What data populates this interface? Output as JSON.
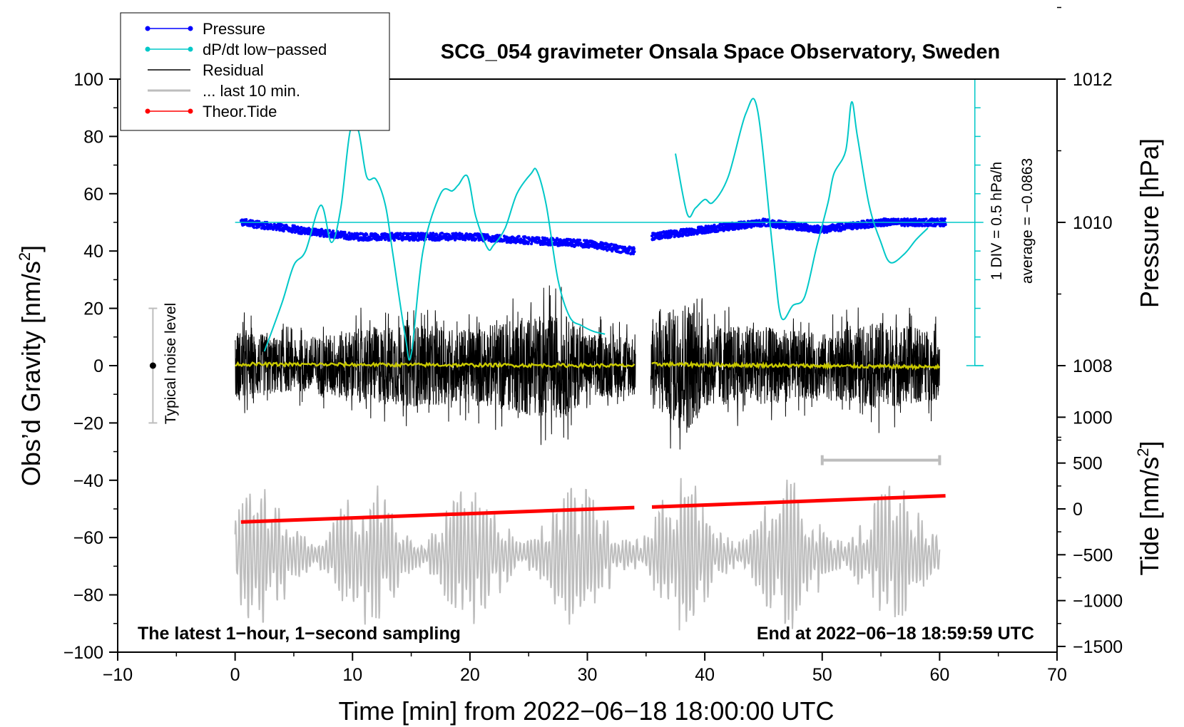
{
  "chart_data": {
    "type": "line",
    "title": "SCG_054 gravimeter Onsala Space Observatory, Sweden",
    "xlabel": "Time [min] from 2022−06−18 18:00:00 UTC",
    "ylabel_main": "Obs’d Gravity [nm/s",
    "ylabel_main_sup": "2",
    "ylabel_main_end": "]",
    "ylabel_pressure": "Pressure [hPa]",
    "ylabel_tide": "Tide [nm/s",
    "ylabel_tide_sup": "2",
    "ylabel_tide_end": "]",
    "xlim": [
      -10,
      70
    ],
    "ylim": [
      -100,
      100
    ],
    "x_ticks": [
      -10,
      0,
      10,
      20,
      30,
      40,
      50,
      60,
      70
    ],
    "x_tick_labels": [
      "−10",
      "0",
      "10",
      "20",
      "30",
      "40",
      "50",
      "60",
      "70"
    ],
    "y_ticks": [
      -100,
      -80,
      -60,
      -40,
      -20,
      0,
      20,
      40,
      60,
      80,
      100
    ],
    "y_tick_labels": [
      "−100",
      "−80",
      "−60",
      "−40",
      "−20",
      "0",
      "20",
      "40",
      "60",
      "80",
      "100"
    ],
    "pressure_ticks": [
      1008,
      1010,
      1012
    ],
    "pressure_tick_labels": [
      "1008",
      "1010",
      "1012"
    ],
    "tide_ticks": [
      -1500,
      -1000,
      -500,
      0,
      500,
      1000
    ],
    "tide_tick_labels": [
      "−1500",
      "−1000",
      "−500",
      "0",
      "500",
      "1000"
    ],
    "legend": [
      {
        "name": "Pressure",
        "color": "#0000ff",
        "marker": true
      },
      {
        "name": "dP/dt low−passed",
        "color": "#00c8c8",
        "marker": true
      },
      {
        "name": "Residual",
        "color": "#000000",
        "marker": false
      },
      {
        "name": "... last 10 min.",
        "color": "#bdbdbd",
        "marker": false
      },
      {
        "name": "Theor.Tide",
        "color": "#ff0000",
        "marker": true
      }
    ],
    "series": [
      {
        "name": "dP/dt low−passed",
        "color": "#00c8c8",
        "segments": [
          {
            "x": [
              2.5,
              4,
              5,
              6,
              7.3,
              8.2,
              9,
              9.8,
              10.5,
              11.2,
              12,
              12.8,
              13.4,
              14.5,
              15,
              16,
              17.5,
              18.5,
              19,
              19.8,
              20.5,
              21.5,
              22,
              23,
              24,
              25.2,
              25.7,
              26.5,
              27.5,
              28.5,
              29.5,
              30.5,
              31.5
            ],
            "y": [
              5,
              22,
              35,
              40,
              56,
              43,
              55,
              82,
              82,
              66,
              65,
              56,
              40,
              10,
              4,
              40,
              60,
              61,
              63,
              66,
              52,
              41,
              42,
              48,
              60,
              67,
              68,
              56,
              30,
              17,
              14,
              12,
              11
            ]
          },
          {
            "x": [
              37.5,
              38.5,
              39.2,
              40,
              40.7,
              42,
              43.5,
              44.5,
              45.8,
              46.5,
              47.5,
              48.5,
              49.5,
              50.5,
              51,
              52,
              52.5,
              53,
              54,
              55,
              55.8,
              57,
              58,
              59
            ],
            "y": [
              74,
              53,
              55,
              58,
              57,
              66,
              88,
              89,
              40,
              17,
              21,
              24,
              41,
              57,
              67,
              75,
              92,
              80,
              56,
              43,
              36,
              39,
              44,
              48
            ]
          }
        ]
      },
      {
        "name": "Pressure",
        "color": "#0000ff",
        "unit": "hPa",
        "segments": [
          {
            "x": [
              0.5,
              10,
              20,
              30,
              34
            ],
            "y": [
              1010.0,
              1009.8,
              1009.8,
              1009.7,
              1009.6
            ]
          },
          {
            "x": [
              35.5,
              40,
              45,
              50,
              55,
              60.5
            ],
            "y": [
              1009.8,
              1009.9,
              1010.0,
              1009.9,
              1010.0,
              1010.0
            ]
          }
        ]
      },
      {
        "name": "Residual",
        "color": "#000000",
        "envelope": {
          "x": [
            0,
            5,
            10,
            15,
            20,
            25,
            28,
            30,
            34,
            35,
            37,
            38.5,
            40,
            45,
            50,
            55,
            60
          ],
          "amplitude": [
            16,
            11,
            16,
            18,
            16,
            22,
            23,
            14,
            14,
            14,
            24,
            30,
            18,
            17,
            14,
            19,
            15
          ]
        }
      },
      {
        "name": "Residual mean",
        "color": "#c8c800",
        "segments": [
          {
            "x": [
              0,
              34
            ],
            "y": [
              0.5,
              0
            ]
          },
          {
            "x": [
              35.5,
              60
            ],
            "y": [
              0.5,
              -0.5
            ]
          }
        ]
      },
      {
        "name": "... last 10 min.",
        "color": "#bdbdbd",
        "x_range": [
          0,
          60
        ],
        "center": -66,
        "amplitude_range": [
          8,
          30
        ]
      },
      {
        "name": "Theor.Tide",
        "color": "#ff0000",
        "unit": "nm/s2",
        "segments": [
          {
            "x": [
              0.5,
              34
            ],
            "y": [
              -143,
              15
            ]
          },
          {
            "x": [
              35.5,
              60.5
            ],
            "y": [
              20,
              143
            ]
          }
        ]
      }
    ],
    "scale_bar": {
      "label": "1 DIV = 0.5 hPa/h",
      "average_label": "average = −0.0863",
      "x": 63,
      "y_range": [
        0,
        100
      ]
    },
    "noise_indicator": {
      "label": "Typical noise level",
      "x": -7,
      "y_range": [
        -20,
        20
      ]
    },
    "last_10_min_bar": {
      "x_range": [
        50,
        60
      ],
      "y": -33
    },
    "annotation_left": "The latest 1−hour, 1−second sampling",
    "annotation_right": "End at 2022−06−18 18:59:59 UTC"
  }
}
